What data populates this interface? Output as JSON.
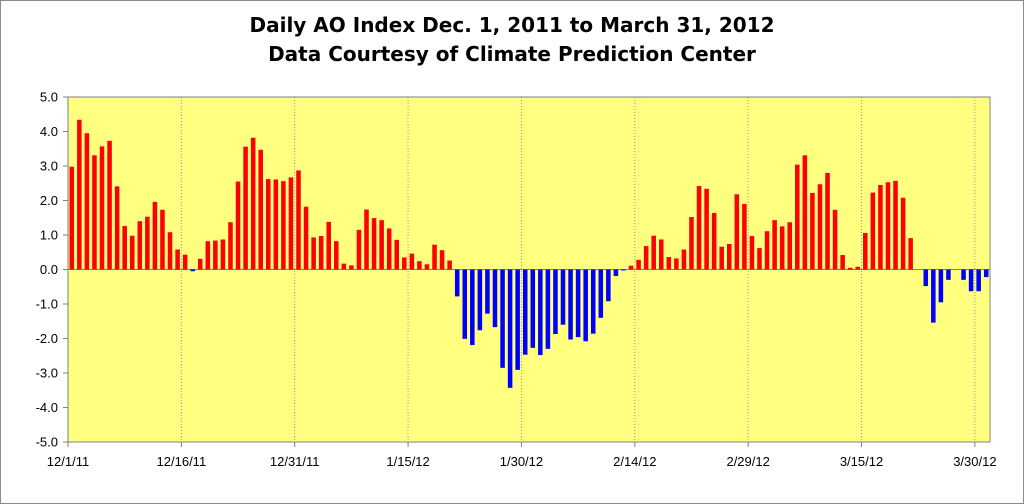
{
  "chart_data": {
    "type": "bar",
    "title": "Daily AO Index Dec. 1, 2011 to March 31, 2012",
    "subtitle": "Data Courtesy of Climate Prediction Center",
    "xlabel": "",
    "ylabel": "",
    "ylim": [
      -5.0,
      5.0
    ],
    "y_ticks": [
      "5.0",
      "4.0",
      "3.0",
      "2.0",
      "1.0",
      "0.0",
      "-1.0",
      "-2.0",
      "-3.0",
      "-4.0",
      "-5.0"
    ],
    "y_tick_values": [
      5,
      4,
      3,
      2,
      1,
      0,
      -1,
      -2,
      -3,
      -4,
      -5
    ],
    "x_tick_labels": [
      "12/1/11",
      "12/16/11",
      "12/31/11",
      "1/15/12",
      "1/30/12",
      "2/14/12",
      "2/29/12",
      "3/15/12",
      "3/30/12"
    ],
    "x_tick_day_index": [
      0,
      15,
      30,
      45,
      60,
      75,
      90,
      105,
      120
    ],
    "grid": true,
    "gridlines": "vertical-dotted",
    "plot_background": "#ffff80",
    "positive_color": "#ff0000",
    "negative_color": "#0000ff",
    "values": [
      2.98,
      4.34,
      3.95,
      3.31,
      3.57,
      3.73,
      2.41,
      1.26,
      0.98,
      1.4,
      1.53,
      1.96,
      1.73,
      1.08,
      0.58,
      0.43,
      -0.05,
      0.31,
      0.82,
      0.84,
      0.87,
      1.37,
      2.55,
      3.56,
      3.82,
      3.47,
      2.62,
      2.61,
      2.56,
      2.67,
      2.87,
      1.82,
      0.93,
      0.97,
      1.38,
      0.82,
      0.17,
      0.12,
      1.15,
      1.74,
      1.49,
      1.43,
      1.19,
      0.86,
      0.35,
      0.46,
      0.24,
      0.15,
      0.72,
      0.56,
      0.26,
      -0.78,
      -2.01,
      -2.19,
      -1.76,
      -1.28,
      -1.67,
      -2.85,
      -3.43,
      -2.91,
      -2.47,
      -2.27,
      -2.48,
      -2.3,
      -1.87,
      -1.6,
      -2.03,
      -1.96,
      -2.08,
      -1.86,
      -1.4,
      -0.92,
      -0.19,
      -0.02,
      0.11,
      0.28,
      0.68,
      0.98,
      0.87,
      0.36,
      0.32,
      0.58,
      1.52,
      2.42,
      2.34,
      1.64,
      0.66,
      0.74,
      2.18,
      1.9,
      0.97,
      0.62,
      1.11,
      1.43,
      1.25,
      1.37,
      3.04,
      3.31,
      2.22,
      2.47,
      2.8,
      1.73,
      0.42,
      0.05,
      0.08,
      1.06,
      2.23,
      2.45,
      2.53,
      2.57,
      2.08,
      0.91,
      0.0,
      -0.48,
      -1.54,
      -0.95,
      -0.3,
      0.0,
      -0.3,
      -0.63,
      -0.63,
      -0.22
    ]
  }
}
